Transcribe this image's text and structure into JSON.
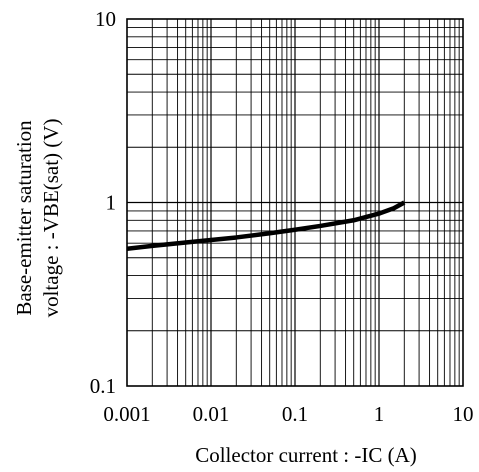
{
  "chart_data": {
    "type": "line",
    "title": "",
    "xlabel": "Collector current : -IC (A)",
    "ylabel_line1": "Base-emitter saturation",
    "ylabel_line2": "voltage : -VBE(sat) (V)",
    "x_scale": "log",
    "y_scale": "log",
    "xlim": [
      0.001,
      10
    ],
    "ylim": [
      0.1,
      10
    ],
    "x_ticks": [
      "0.001",
      "0.01",
      "0.1",
      "1",
      "10"
    ],
    "y_ticks": [
      "0.1",
      "1",
      "10"
    ],
    "grid": true,
    "series": [
      {
        "x": [
          0.001,
          0.002,
          0.005,
          0.01,
          0.02,
          0.05,
          0.1,
          0.2,
          0.5,
          1,
          1.5,
          2
        ],
        "y": [
          0.56,
          0.58,
          0.605,
          0.625,
          0.645,
          0.68,
          0.71,
          0.745,
          0.8,
          0.87,
          0.93,
          1.0
        ],
        "color": "#000000"
      }
    ]
  }
}
